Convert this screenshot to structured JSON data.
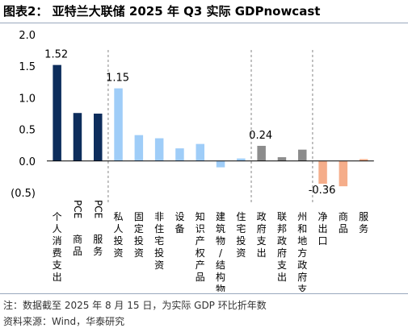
{
  "title": "图表2： 亚特兰大联储 2025 年 Q3 实际 GDPnowcast",
  "notes": {
    "line1": "注：数据截至 2025 年 8 月 15 日，为实际 GDP 环比折年数",
    "line2": "资料来源：Wind，华泰研究"
  },
  "colors": {
    "dark_blue": "#0d2d5c",
    "light_blue": "#9fcdf8",
    "gray": "#8c8c8c",
    "orange": "#f5ad8a",
    "separator": "#9a9a9a"
  },
  "chart_data": {
    "type": "bar",
    "categories": [
      "个人消费支出",
      "PCE 商品",
      "PCE 服务",
      "私人投资",
      "固定投资",
      "非住宅投资",
      "设备",
      "知识产权产品",
      "建筑物/结构物",
      "住宅投资",
      "政府支出",
      "联邦政府支出",
      "州和地方政府支出",
      "净出口",
      "商品",
      "服务"
    ],
    "values": [
      1.52,
      0.76,
      0.75,
      1.15,
      0.41,
      0.36,
      0.2,
      0.27,
      -0.1,
      0.04,
      0.24,
      0.06,
      0.18,
      -0.36,
      -0.4,
      0.03
    ],
    "bar_colors": [
      "dark_blue",
      "dark_blue",
      "dark_blue",
      "light_blue",
      "light_blue",
      "light_blue",
      "light_blue",
      "light_blue",
      "light_blue",
      "light_blue",
      "gray",
      "gray",
      "gray",
      "orange",
      "orange",
      "orange"
    ],
    "data_labels": [
      {
        "index": 0,
        "text": "1.52"
      },
      {
        "index": 3,
        "text": "1.15"
      },
      {
        "index": 10,
        "text": "0.24"
      },
      {
        "index": 13,
        "text": "-0.36"
      }
    ],
    "y_ticks": [
      2.0,
      1.5,
      1.0,
      0.5,
      0.0,
      -0.5
    ],
    "y_tick_labels": [
      "2.0",
      "1.5",
      "1.0",
      "0.5",
      "0.0",
      "(0.5)"
    ],
    "ylim": [
      -0.5,
      2.0
    ],
    "group_separators_after": [
      2,
      9,
      12
    ],
    "grid": false,
    "legend": "none"
  }
}
